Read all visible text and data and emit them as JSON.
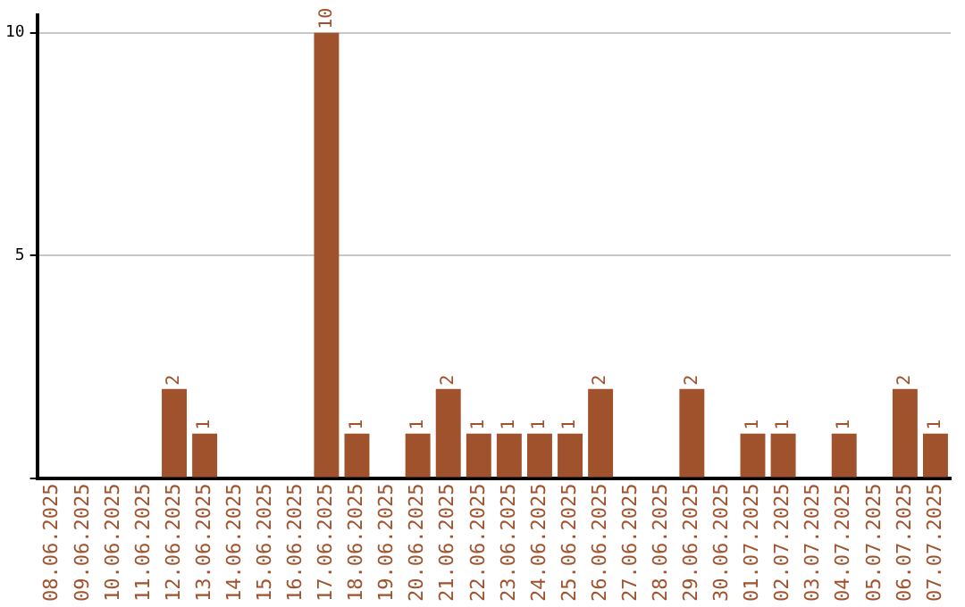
{
  "chart_data": {
    "type": "bar",
    "categories": [
      "08.06.2025",
      "09.06.2025",
      "10.06.2025",
      "11.06.2025",
      "12.06.2025",
      "13.06.2025",
      "14.06.2025",
      "15.06.2025",
      "16.06.2025",
      "17.06.2025",
      "18.06.2025",
      "19.06.2025",
      "20.06.2025",
      "21.06.2025",
      "22.06.2025",
      "23.06.2025",
      "24.06.2025",
      "25.06.2025",
      "26.06.2025",
      "27.06.2025",
      "28.06.2025",
      "29.06.2025",
      "30.06.2025",
      "01.07.2025",
      "02.07.2025",
      "03.07.2025",
      "04.07.2025",
      "05.07.2025",
      "06.07.2025",
      "07.07.2025"
    ],
    "values": [
      0,
      0,
      0,
      0,
      2,
      1,
      0,
      0,
      0,
      10,
      1,
      0,
      1,
      2,
      1,
      1,
      1,
      1,
      2,
      0,
      0,
      2,
      0,
      1,
      1,
      0,
      1,
      0,
      2,
      1
    ],
    "value_labels": [
      null,
      null,
      null,
      null,
      "2",
      "1",
      null,
      null,
      null,
      "10",
      "1",
      null,
      "1",
      "2",
      "1",
      "1",
      "1",
      "1",
      "2",
      null,
      null,
      "2",
      null,
      "1",
      "1",
      null,
      "1",
      null,
      "2",
      "1"
    ],
    "color": "#a0522d",
    "ylim": [
      0,
      10.4
    ],
    "yticks": [
      {
        "value": 0,
        "label": null
      },
      5,
      10
    ],
    "grid": "y",
    "legend": false
  }
}
